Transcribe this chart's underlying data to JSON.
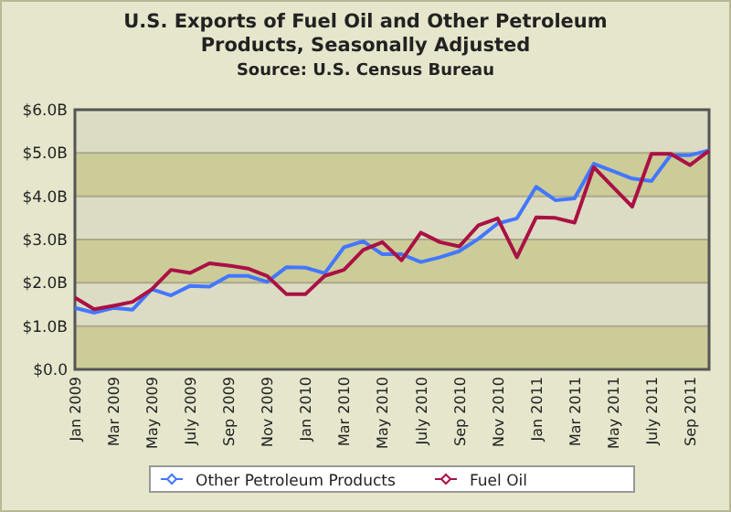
{
  "chart_data": {
    "type": "line",
    "title": "U.S. Exports of Fuel Oil and Other Petroleum Products, Seasonally Adjusted",
    "subtitle": "Source: U.S. Census Bureau",
    "categories": [
      "Jan 2009",
      null,
      "Mar 2009",
      null,
      "May 2009",
      null,
      "July 2009",
      null,
      "Sep 2009",
      null,
      "Nov 2009",
      null,
      "Jan 2010",
      null,
      "Mar 2010",
      null,
      "May 2010",
      null,
      "July 2010",
      null,
      "Sep 2010",
      null,
      "Nov 2010",
      null,
      "Jan 2011",
      null,
      "Mar 2011",
      null,
      "May 2011",
      null,
      "July 2011",
      null,
      "Sep 2011",
      null
    ],
    "series": [
      {
        "name": "Other Petroleum Products",
        "color": "#4477ff",
        "values": [
          1.42,
          1.31,
          1.42,
          1.38,
          1.85,
          1.71,
          1.93,
          1.91,
          2.16,
          2.16,
          2.02,
          2.36,
          2.35,
          2.22,
          2.82,
          2.96,
          2.66,
          2.66,
          2.48,
          2.59,
          2.73,
          3.02,
          3.37,
          3.49,
          4.22,
          3.91,
          3.95,
          4.75,
          4.58,
          4.41,
          4.35,
          4.95,
          4.95,
          5.06
        ]
      },
      {
        "name": "Fuel Oil",
        "color": "#aa1144",
        "values": [
          1.66,
          1.39,
          1.47,
          1.56,
          1.85,
          2.3,
          2.23,
          2.45,
          2.4,
          2.33,
          2.16,
          1.74,
          1.74,
          2.16,
          2.3,
          2.76,
          2.94,
          2.52,
          3.16,
          2.94,
          2.84,
          3.33,
          3.49,
          2.59,
          3.51,
          3.5,
          3.39,
          4.67,
          4.21,
          3.76,
          4.98,
          4.98,
          4.72,
          5.05
        ]
      }
    ],
    "ylim": [
      0,
      6
    ],
    "yticks": [
      {
        "value": 0,
        "label": "$0.0"
      },
      {
        "value": 1,
        "label": "$1.0B"
      },
      {
        "value": 2,
        "label": "$2.0B"
      },
      {
        "value": 3,
        "label": "$3.0B"
      },
      {
        "value": 4,
        "label": "$4.0B"
      },
      {
        "value": 5,
        "label": "$5.0B"
      },
      {
        "value": 6,
        "label": "$6.0B"
      }
    ],
    "bands": [
      {
        "axis": "y",
        "from": 0,
        "to": 1,
        "color": "#cccc99"
      },
      {
        "axis": "y",
        "from": 2,
        "to": 3,
        "color": "#cccc99"
      },
      {
        "axis": "y",
        "from": 4,
        "to": 5,
        "color": "#cccc99"
      }
    ],
    "grid": true,
    "legend": "bottom"
  }
}
